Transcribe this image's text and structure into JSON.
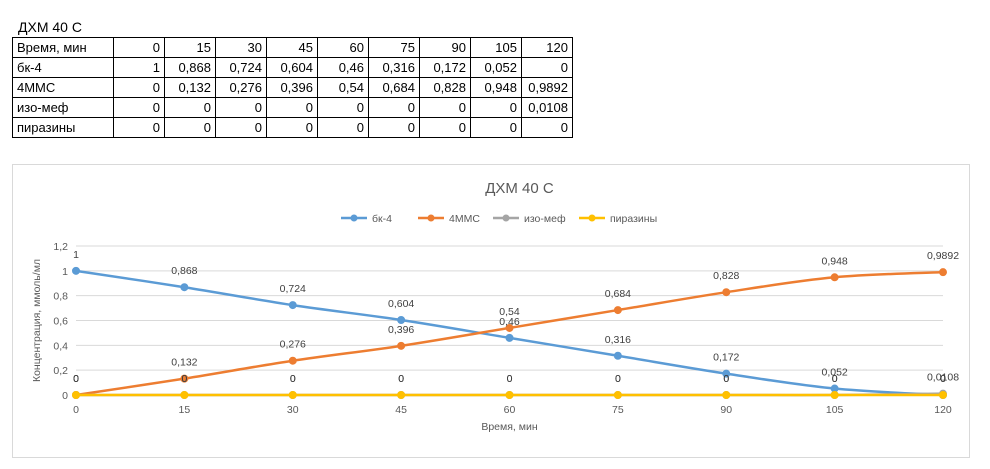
{
  "sheet_title": "ДХМ 40 С",
  "table": {
    "header": {
      "label": "Время, мин",
      "values": [
        "0",
        "15",
        "30",
        "45",
        "60",
        "75",
        "90",
        "105",
        "120"
      ]
    },
    "rows": [
      {
        "label": "бк-4",
        "values": [
          "1",
          "0,868",
          "0,724",
          "0,604",
          "0,46",
          "0,316",
          "0,172",
          "0,052",
          "0"
        ]
      },
      {
        "label": "4ММС",
        "values": [
          "0",
          "0,132",
          "0,276",
          "0,396",
          "0,54",
          "0,684",
          "0,828",
          "0,948",
          "0,9892"
        ]
      },
      {
        "label": "изо-меф",
        "values": [
          "0",
          "0",
          "0",
          "0",
          "0",
          "0",
          "0",
          "0",
          "0,0108"
        ]
      },
      {
        "label": "пиразины",
        "values": [
          "0",
          "0",
          "0",
          "0",
          "0",
          "0",
          "0",
          "0",
          "0"
        ]
      }
    ]
  },
  "chart_data": {
    "type": "line",
    "title": "ДХМ 40 С",
    "xlabel": "Время, мин",
    "ylabel": "Концентрация, ммоль/мл",
    "x": [
      0,
      15,
      30,
      45,
      60,
      75,
      90,
      105,
      120
    ],
    "x_tick_labels": [
      "0",
      "15",
      "30",
      "45",
      "60",
      "75",
      "90",
      "105",
      "120"
    ],
    "y_tick_labels": [
      "0",
      "0,2",
      "0,4",
      "0,6",
      "0,8",
      "1",
      "1,2"
    ],
    "ylim": [
      0,
      1.2
    ],
    "grid": "horizontal",
    "legend_position": "top",
    "series": [
      {
        "name": "бк-4",
        "color": "#5b9bd5",
        "values": [
          1,
          0.868,
          0.724,
          0.604,
          0.46,
          0.316,
          0.172,
          0.052,
          0
        ],
        "labels": [
          "1",
          "0,868",
          "0,724",
          "0,604",
          "0,46",
          "0,316",
          "0,172",
          "0,052",
          "0"
        ]
      },
      {
        "name": "4ММС",
        "color": "#ed7d31",
        "values": [
          0,
          0.132,
          0.276,
          0.396,
          0.54,
          0.684,
          0.828,
          0.948,
          0.9892
        ],
        "labels": [
          "0",
          "0,132",
          "0,276",
          "0,396",
          "0,54",
          "0,684",
          "0,828",
          "0,948",
          "0,9892"
        ]
      },
      {
        "name": "изо-меф",
        "color": "#a5a5a5",
        "values": [
          0,
          0,
          0,
          0,
          0,
          0,
          0,
          0,
          0.0108
        ],
        "labels": [
          "0",
          "0",
          "0",
          "0",
          "0",
          "0",
          "0",
          "0",
          "0,0108"
        ]
      },
      {
        "name": "пиразины",
        "color": "#ffc000",
        "values": [
          0,
          0,
          0,
          0,
          0,
          0,
          0,
          0,
          0
        ],
        "labels": [
          "0",
          "0",
          "0",
          "0",
          "0",
          "0",
          "0",
          "0",
          "0"
        ]
      }
    ]
  }
}
